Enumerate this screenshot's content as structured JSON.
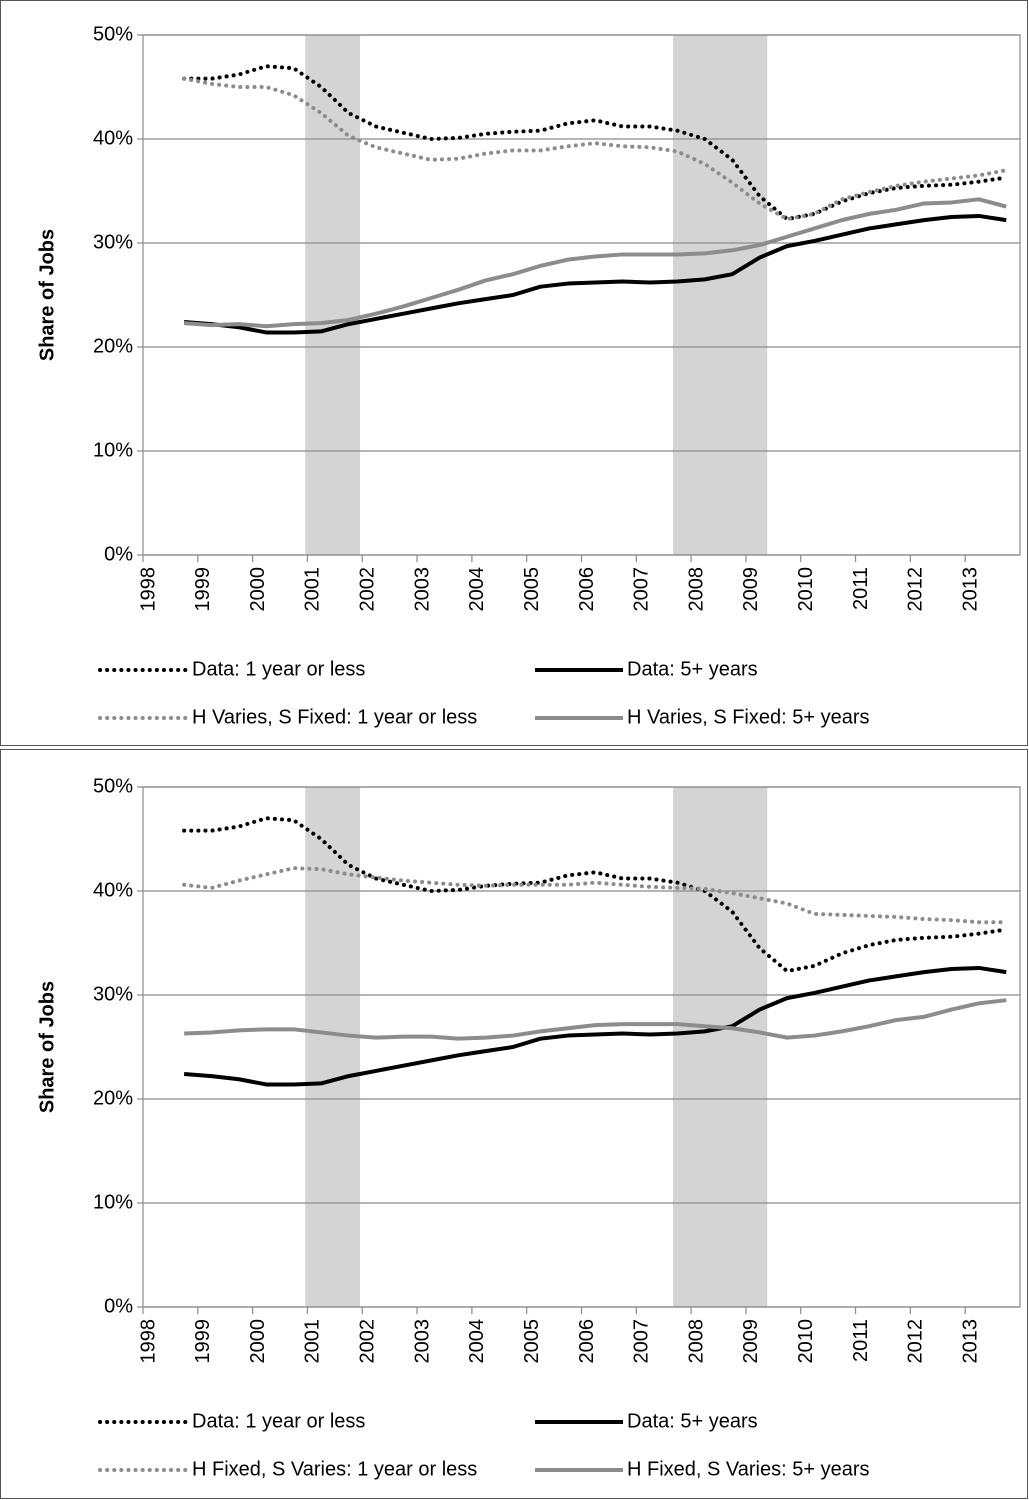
{
  "chart_data": [
    {
      "type": "line",
      "ylabel": "Share of Jobs",
      "xlim": [
        1998,
        2014
      ],
      "xticks": [
        1998,
        1999,
        2000,
        2001,
        2002,
        2003,
        2004,
        2005,
        2006,
        2007,
        2008,
        2009,
        2010,
        2011,
        2012,
        2013
      ],
      "ylim": [
        0,
        50
      ],
      "yticks": [
        {
          "value": 0,
          "label": "0%"
        },
        {
          "value": 10,
          "label": "10%"
        },
        {
          "value": 20,
          "label": "20%"
        },
        {
          "value": 30,
          "label": "30%"
        },
        {
          "value": 40,
          "label": "40%"
        },
        {
          "value": 50,
          "label": "50%"
        }
      ],
      "grid": true,
      "shaded": [
        [
          2000.96,
          2001.96
        ],
        [
          2007.67,
          2009.39
        ]
      ],
      "x": [
        1998.75,
        1999.25,
        1999.75,
        2000.25,
        2000.75,
        2001.25,
        2001.75,
        2002.25,
        2002.75,
        2003.25,
        2003.75,
        2004.25,
        2004.75,
        2005.25,
        2005.75,
        2006.25,
        2006.75,
        2007.25,
        2007.75,
        2008.25,
        2008.75,
        2009.25,
        2009.75,
        2010.25,
        2010.75,
        2011.25,
        2011.75,
        2012.25,
        2012.75,
        2013.25,
        2013.75
      ],
      "series": [
        {
          "name": "Data: 1 year or less",
          "color": "#000000",
          "style": "dotted",
          "values": [
            45.8,
            45.8,
            46.2,
            47.0,
            46.8,
            45.0,
            42.5,
            41.2,
            40.6,
            40.0,
            40.1,
            40.5,
            40.7,
            40.8,
            41.5,
            41.8,
            41.2,
            41.2,
            40.8,
            40.0,
            38.0,
            34.5,
            32.3,
            32.8,
            34.0,
            34.8,
            35.3,
            35.5,
            35.6,
            35.9,
            36.3
          ]
        },
        {
          "name": "Data: 5+ years",
          "color": "#000000",
          "style": "solid",
          "values": [
            22.4,
            22.2,
            21.9,
            21.4,
            21.4,
            21.5,
            22.2,
            22.7,
            23.2,
            23.7,
            24.2,
            24.6,
            25.0,
            25.8,
            26.1,
            26.2,
            26.3,
            26.2,
            26.3,
            26.5,
            27.0,
            28.6,
            29.7,
            30.2,
            30.8,
            31.4,
            31.8,
            32.2,
            32.5,
            32.6,
            32.2
          ]
        },
        {
          "name": "H Varies, S Fixed: 1 year or less",
          "color": "#8c8c8c",
          "style": "dotted",
          "values": [
            45.8,
            45.3,
            45.0,
            45.0,
            44.2,
            42.5,
            40.3,
            39.2,
            38.6,
            38.0,
            38.1,
            38.6,
            38.9,
            38.9,
            39.3,
            39.6,
            39.3,
            39.2,
            38.8,
            37.6,
            35.8,
            33.8,
            32.3,
            32.8,
            34.2,
            34.9,
            35.5,
            35.9,
            36.2,
            36.5,
            37.0
          ]
        },
        {
          "name": "H Varies, S Fixed: 5+ years",
          "color": "#8c8c8c",
          "style": "solid",
          "values": [
            22.3,
            22.1,
            22.2,
            22.0,
            22.2,
            22.3,
            22.6,
            23.2,
            23.9,
            24.7,
            25.5,
            26.4,
            27.0,
            27.8,
            28.4,
            28.7,
            28.9,
            28.9,
            28.9,
            29.0,
            29.3,
            29.8,
            30.6,
            31.4,
            32.2,
            32.8,
            33.2,
            33.8,
            33.9,
            34.2,
            33.5
          ]
        }
      ]
    },
    {
      "type": "line",
      "ylabel": "Share of Jobs",
      "xlim": [
        1998,
        2014
      ],
      "xticks": [
        1998,
        1999,
        2000,
        2001,
        2002,
        2003,
        2004,
        2005,
        2006,
        2007,
        2008,
        2009,
        2010,
        2011,
        2012,
        2013
      ],
      "ylim": [
        0,
        50
      ],
      "yticks": [
        {
          "value": 0,
          "label": "0%"
        },
        {
          "value": 10,
          "label": "10%"
        },
        {
          "value": 20,
          "label": "20%"
        },
        {
          "value": 30,
          "label": "30%"
        },
        {
          "value": 40,
          "label": "40%"
        },
        {
          "value": 50,
          "label": "50%"
        }
      ],
      "grid": true,
      "shaded": [
        [
          2000.96,
          2001.96
        ],
        [
          2007.67,
          2009.39
        ]
      ],
      "x": [
        1998.75,
        1999.25,
        1999.75,
        2000.25,
        2000.75,
        2001.25,
        2001.75,
        2002.25,
        2002.75,
        2003.25,
        2003.75,
        2004.25,
        2004.75,
        2005.25,
        2005.75,
        2006.25,
        2006.75,
        2007.25,
        2007.75,
        2008.25,
        2008.75,
        2009.25,
        2009.75,
        2010.25,
        2010.75,
        2011.25,
        2011.75,
        2012.25,
        2012.75,
        2013.25,
        2013.75
      ],
      "series": [
        {
          "name": "Data: 1 year or less",
          "color": "#000000",
          "style": "dotted",
          "values": [
            45.8,
            45.8,
            46.2,
            47.0,
            46.8,
            45.0,
            42.5,
            41.2,
            40.6,
            40.0,
            40.1,
            40.5,
            40.7,
            40.8,
            41.5,
            41.8,
            41.2,
            41.2,
            40.8,
            40.0,
            38.0,
            34.5,
            32.3,
            32.8,
            34.0,
            34.8,
            35.3,
            35.5,
            35.6,
            35.9,
            36.3
          ]
        },
        {
          "name": "Data: 5+ years",
          "color": "#000000",
          "style": "solid",
          "values": [
            22.4,
            22.2,
            21.9,
            21.4,
            21.4,
            21.5,
            22.2,
            22.7,
            23.2,
            23.7,
            24.2,
            24.6,
            25.0,
            25.8,
            26.1,
            26.2,
            26.3,
            26.2,
            26.3,
            26.5,
            27.0,
            28.6,
            29.7,
            30.2,
            30.8,
            31.4,
            31.8,
            32.2,
            32.5,
            32.6,
            32.2
          ]
        },
        {
          "name": "H Fixed, S Varies: 1 year or less",
          "color": "#8c8c8c",
          "style": "dotted",
          "values": [
            40.6,
            40.3,
            41.0,
            41.6,
            42.2,
            42.1,
            41.6,
            41.3,
            41.0,
            40.8,
            40.6,
            40.5,
            40.6,
            40.6,
            40.6,
            40.8,
            40.6,
            40.4,
            40.3,
            40.2,
            39.8,
            39.3,
            38.8,
            37.8,
            37.7,
            37.6,
            37.5,
            37.3,
            37.2,
            37.0,
            37.0
          ]
        },
        {
          "name": "H Fixed, S Varies: 5+ years",
          "color": "#8c8c8c",
          "style": "solid",
          "values": [
            26.3,
            26.4,
            26.6,
            26.7,
            26.7,
            26.4,
            26.1,
            25.9,
            26.0,
            26.0,
            25.8,
            25.9,
            26.1,
            26.5,
            26.8,
            27.1,
            27.2,
            27.2,
            27.2,
            27.0,
            26.8,
            26.4,
            25.9,
            26.1,
            26.5,
            27.0,
            27.6,
            27.9,
            28.6,
            29.2,
            29.5
          ]
        }
      ]
    }
  ]
}
